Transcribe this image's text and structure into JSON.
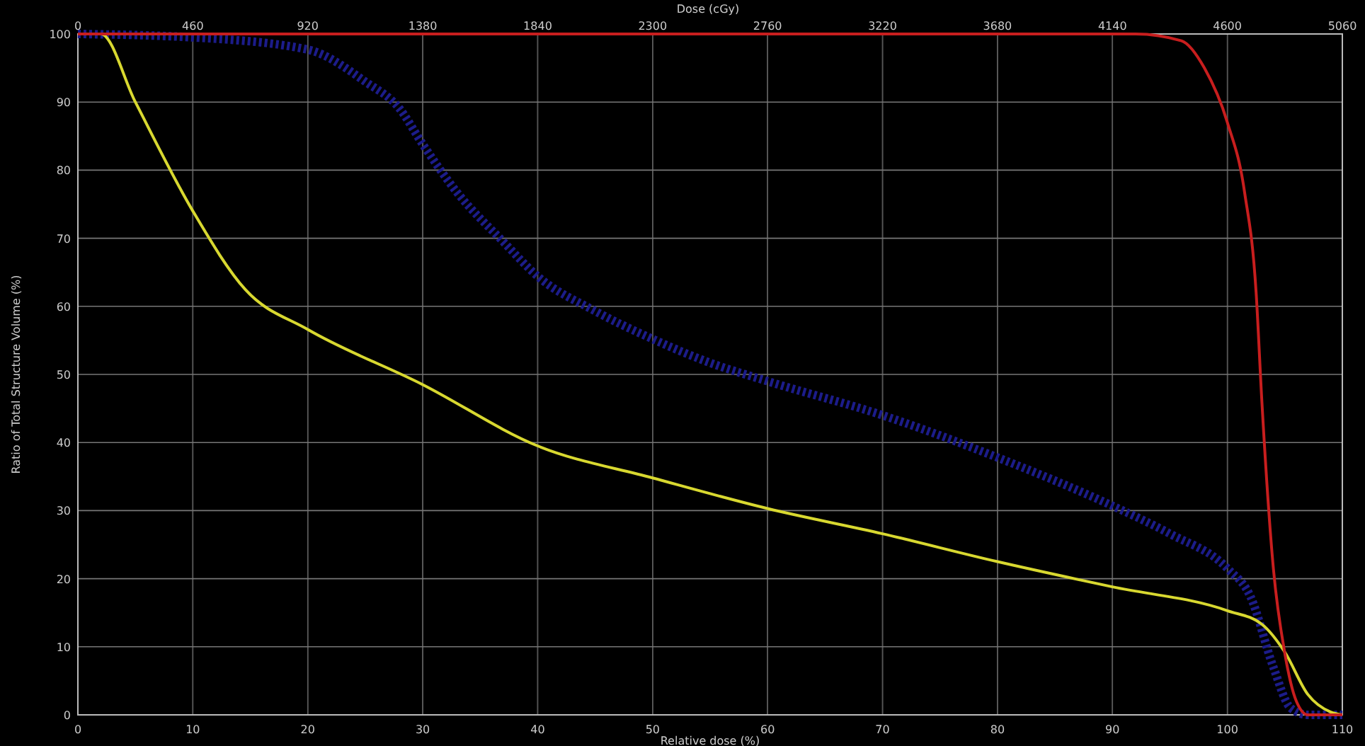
{
  "chart_data": {
    "type": "line",
    "xlabel": "Relative dose (%)",
    "ylabel": "Ratio of Total Structure Volume (%)",
    "x2label": "Dose (cGy)",
    "xlim": [
      0,
      110
    ],
    "xticks": [
      0,
      10,
      20,
      30,
      40,
      50,
      60,
      70,
      80,
      90,
      100,
      110
    ],
    "x2lim": [
      0,
      5060
    ],
    "x2ticks": [
      0,
      460,
      920,
      1380,
      1840,
      2300,
      2760,
      3220,
      3680,
      4140,
      4600,
      5060
    ],
    "ylim": [
      0,
      100
    ],
    "yticks": [
      0,
      10,
      20,
      30,
      40,
      50,
      60,
      70,
      80,
      90,
      100
    ],
    "grid": true,
    "marker": "none",
    "series": [
      {
        "color": "#1c1c8a",
        "line_style": "dotted",
        "x": [
          0,
          10,
          20,
          25,
          28,
          30,
          33,
          37,
          40,
          45,
          50,
          55,
          60,
          70,
          80,
          90,
          95,
          100,
          102,
          104,
          105.5,
          107,
          110
        ],
        "values": [
          100,
          99.5,
          97.7,
          93,
          89,
          83.8,
          76.7,
          69.5,
          64.4,
          59.3,
          55.2,
          51.7,
          49,
          44,
          37.8,
          30.7,
          26.6,
          21.5,
          17.4,
          7,
          1,
          0,
          0
        ]
      },
      {
        "color": "#d8d830",
        "line_style": "solid",
        "x": [
          0,
          2,
          5,
          10,
          14.6,
          20,
          30,
          40,
          50,
          60,
          70,
          80,
          90,
          100,
          103,
          105,
          107,
          109,
          110
        ],
        "values": [
          100,
          100,
          90,
          74,
          62.4,
          56.6,
          48.5,
          39.5,
          34.8,
          30.3,
          26.6,
          22.5,
          18.8,
          15.3,
          13.3,
          9.2,
          3,
          0.4,
          0
        ]
      },
      {
        "color": "#c81e1e",
        "line_style": "solid",
        "x": [
          0,
          92,
          96,
          98,
          100,
          101.5,
          102.5,
          103,
          104,
          105,
          106,
          107,
          110
        ],
        "values": [
          100,
          100,
          99,
          95,
          87,
          76.7,
          62,
          46,
          21.5,
          9,
          2,
          0,
          0
        ]
      }
    ]
  }
}
